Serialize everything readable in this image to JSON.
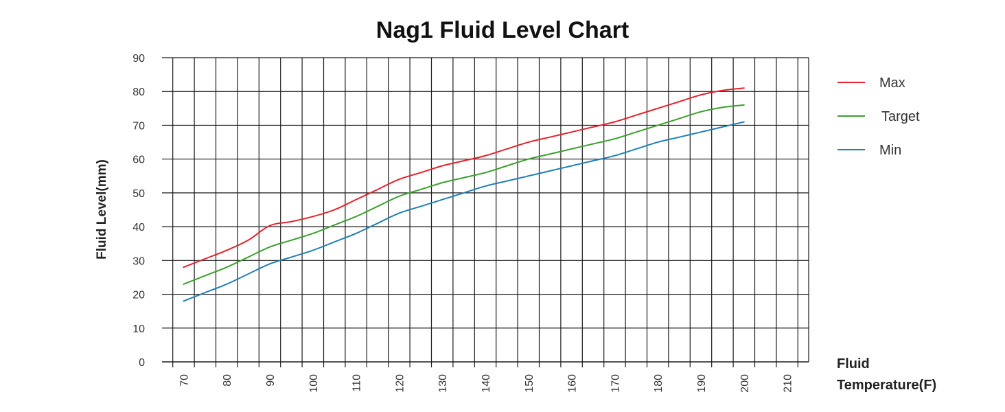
{
  "chart_data": {
    "type": "line",
    "title": "Nag1 Fluid Level Chart",
    "ylabel": "Fluid Level(mm)",
    "xlabel_lines": [
      "Fluid",
      "Temperature(F)"
    ],
    "xlim": [
      65,
      215
    ],
    "ylim": [
      0,
      90
    ],
    "x_ticks": [
      70,
      80,
      90,
      100,
      110,
      120,
      130,
      140,
      150,
      160,
      170,
      180,
      190,
      200,
      210
    ],
    "y_ticks": [
      0,
      10,
      20,
      30,
      40,
      50,
      60,
      70,
      80,
      90
    ],
    "grid": true,
    "legend_position": "right",
    "series": [
      {
        "name": "Max",
        "color": "#e8202a",
        "x": [
          70,
          75,
          80,
          85,
          90,
          95,
          100,
          105,
          110,
          115,
          120,
          125,
          130,
          135,
          140,
          145,
          150,
          155,
          160,
          165,
          170,
          175,
          180,
          185,
          190,
          195,
          200
        ],
        "y": [
          28,
          30.5,
          33,
          36,
          40.3,
          41.5,
          43,
          45,
          48,
          51,
          54,
          56,
          58,
          59.5,
          61,
          63,
          65,
          66.5,
          68,
          69.5,
          71,
          73,
          75,
          77,
          79,
          80.3,
          81
        ]
      },
      {
        "name": "Target",
        "color": "#3aa12c",
        "x": [
          70,
          75,
          80,
          85,
          90,
          95,
          100,
          105,
          110,
          115,
          120,
          125,
          130,
          135,
          140,
          145,
          150,
          155,
          160,
          165,
          170,
          175,
          180,
          185,
          190,
          195,
          200
        ],
        "y": [
          23,
          25.5,
          28,
          31,
          34,
          36,
          38,
          40.5,
          43,
          46,
          49,
          51,
          53,
          54.5,
          56,
          58,
          60,
          61.5,
          63,
          64.5,
          66,
          68,
          70,
          72,
          74,
          75.3,
          76
        ]
      },
      {
        "name": "Min",
        "color": "#1f7fb6",
        "x": [
          70,
          75,
          80,
          85,
          90,
          95,
          100,
          105,
          110,
          115,
          120,
          125,
          130,
          135,
          140,
          145,
          150,
          155,
          160,
          165,
          170,
          175,
          180,
          185,
          190,
          195,
          200
        ],
        "y": [
          18,
          20.5,
          23,
          26,
          29,
          31,
          33,
          35.5,
          38,
          41,
          44,
          46,
          48,
          50,
          52,
          53.5,
          55,
          56.5,
          58,
          59.5,
          61,
          63,
          65,
          66.5,
          68,
          69.5,
          71
        ]
      }
    ]
  }
}
